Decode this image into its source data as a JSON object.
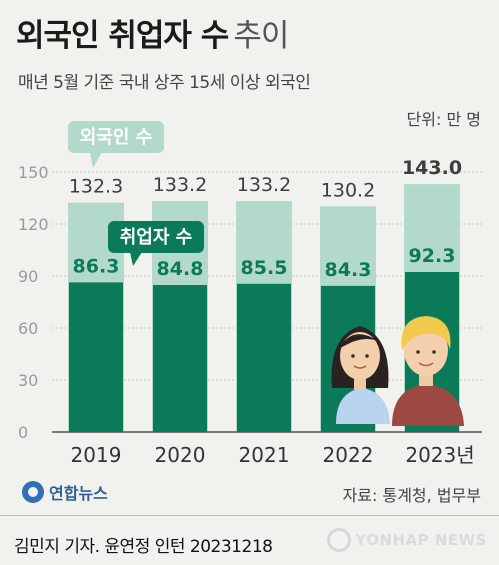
{
  "title": {
    "main": "외국인 취업자 수",
    "rest": "추이"
  },
  "subtitle": "매년 5월 기준 국내 상주 15세 이상 외국인",
  "unit": "단위: 만 명",
  "source": "자료: 통계청, 법무부",
  "logo": "연합뉴스",
  "credit": "김민지 기자. 윤연정 인턴  20231218",
  "watermark": "YONHAP NEWS",
  "colors": {
    "foreigners": "#b3d9cd",
    "employed": "#0b7a59",
    "label_dark": "#3d3d3d",
    "label_green": "#0b7a59"
  },
  "chart_data": {
    "type": "bar",
    "categories": [
      "2019",
      "2020",
      "2021",
      "2022",
      "2023년"
    ],
    "series": [
      {
        "name": "외국인 수",
        "values": [
          132.3,
          133.2,
          133.2,
          130.2,
          143.0
        ],
        "labels": [
          "132.3",
          "133.2",
          "133.2",
          "130.2",
          "143.0"
        ]
      },
      {
        "name": "취업자 수",
        "values": [
          86.3,
          84.8,
          85.5,
          84.3,
          92.3
        ],
        "labels": [
          "86.3",
          "84.8",
          "85.5",
          "84.3",
          "92.3"
        ]
      }
    ],
    "yticks": [
      "0",
      "30",
      "60",
      "90",
      "120",
      "150"
    ],
    "ylim": [
      0,
      150
    ],
    "grid": true,
    "legend": "inline callouts"
  }
}
